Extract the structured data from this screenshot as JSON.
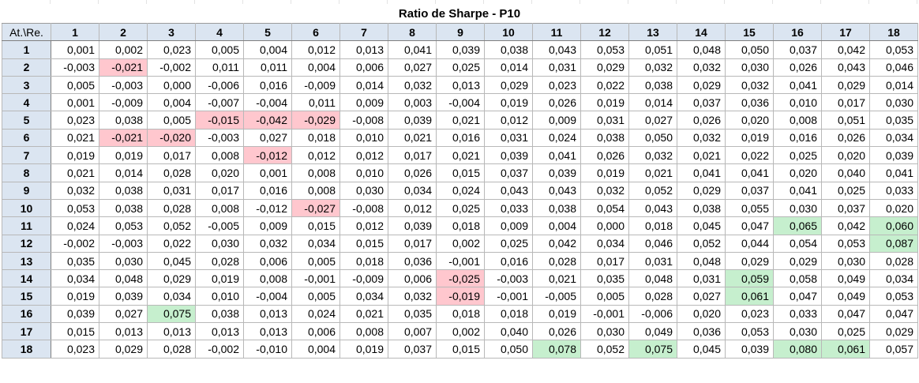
{
  "title": "Ratio de Sharpe - P10",
  "corner_label": "At.\\Re.",
  "columns": [
    "1",
    "2",
    "3",
    "4",
    "5",
    "6",
    "7",
    "8",
    "9",
    "10",
    "11",
    "12",
    "13",
    "14",
    "15",
    "16",
    "17",
    "18"
  ],
  "colors": {
    "header_bg": "#dbe5f1",
    "negative_highlight_bg": "#ffc7ce",
    "negative_highlight_text": "#9c0006",
    "positive_highlight_bg": "#c6efce",
    "positive_highlight_text": "#006100"
  },
  "rows": [
    {
      "label": "1",
      "cells": [
        {
          "v": "0,001"
        },
        {
          "v": "0,002"
        },
        {
          "v": "0,023"
        },
        {
          "v": "0,005"
        },
        {
          "v": "0,004"
        },
        {
          "v": "0,012"
        },
        {
          "v": "0,013"
        },
        {
          "v": "0,041"
        },
        {
          "v": "0,039"
        },
        {
          "v": "0,038"
        },
        {
          "v": "0,043"
        },
        {
          "v": "0,053"
        },
        {
          "v": "0,051"
        },
        {
          "v": "0,048"
        },
        {
          "v": "0,050"
        },
        {
          "v": "0,037"
        },
        {
          "v": "0,042"
        },
        {
          "v": "0,053"
        }
      ]
    },
    {
      "label": "2",
      "cells": [
        {
          "v": "-0,003"
        },
        {
          "v": "-0,021",
          "h": "neg"
        },
        {
          "v": "-0,002"
        },
        {
          "v": "0,011"
        },
        {
          "v": "0,011"
        },
        {
          "v": "0,004"
        },
        {
          "v": "0,006"
        },
        {
          "v": "0,027"
        },
        {
          "v": "0,025"
        },
        {
          "v": "0,014"
        },
        {
          "v": "0,031"
        },
        {
          "v": "0,029"
        },
        {
          "v": "0,032"
        },
        {
          "v": "0,032"
        },
        {
          "v": "0,030"
        },
        {
          "v": "0,026"
        },
        {
          "v": "0,043"
        },
        {
          "v": "0,046"
        }
      ]
    },
    {
      "label": "3",
      "cells": [
        {
          "v": "0,005"
        },
        {
          "v": "-0,003"
        },
        {
          "v": "0,000"
        },
        {
          "v": "-0,006"
        },
        {
          "v": "0,016"
        },
        {
          "v": "-0,009"
        },
        {
          "v": "0,014"
        },
        {
          "v": "0,032"
        },
        {
          "v": "0,013"
        },
        {
          "v": "0,029"
        },
        {
          "v": "0,023"
        },
        {
          "v": "0,022"
        },
        {
          "v": "0,038"
        },
        {
          "v": "0,029"
        },
        {
          "v": "0,032"
        },
        {
          "v": "0,041"
        },
        {
          "v": "0,029"
        },
        {
          "v": "0,014"
        }
      ]
    },
    {
      "label": "4",
      "cells": [
        {
          "v": "0,001"
        },
        {
          "v": "-0,009"
        },
        {
          "v": "0,004"
        },
        {
          "v": "-0,007"
        },
        {
          "v": "-0,004"
        },
        {
          "v": "0,011"
        },
        {
          "v": "0,009"
        },
        {
          "v": "0,003"
        },
        {
          "v": "-0,004"
        },
        {
          "v": "0,019"
        },
        {
          "v": "0,026"
        },
        {
          "v": "0,019"
        },
        {
          "v": "0,014"
        },
        {
          "v": "0,037"
        },
        {
          "v": "0,036"
        },
        {
          "v": "0,010"
        },
        {
          "v": "0,017"
        },
        {
          "v": "0,030"
        }
      ]
    },
    {
      "label": "5",
      "cells": [
        {
          "v": "0,023"
        },
        {
          "v": "0,038"
        },
        {
          "v": "0,005"
        },
        {
          "v": "-0,015",
          "h": "neg"
        },
        {
          "v": "-0,042",
          "h": "neg"
        },
        {
          "v": "-0,029",
          "h": "neg"
        },
        {
          "v": "-0,008"
        },
        {
          "v": "0,039"
        },
        {
          "v": "0,021"
        },
        {
          "v": "0,012"
        },
        {
          "v": "0,009"
        },
        {
          "v": "0,031"
        },
        {
          "v": "0,027"
        },
        {
          "v": "0,026"
        },
        {
          "v": "0,020"
        },
        {
          "v": "0,008"
        },
        {
          "v": "0,051"
        },
        {
          "v": "0,035"
        }
      ]
    },
    {
      "label": "6",
      "cells": [
        {
          "v": "0,021"
        },
        {
          "v": "-0,021",
          "h": "neg"
        },
        {
          "v": "-0,020",
          "h": "neg"
        },
        {
          "v": "-0,003"
        },
        {
          "v": "0,027"
        },
        {
          "v": "0,018"
        },
        {
          "v": "0,010"
        },
        {
          "v": "0,021"
        },
        {
          "v": "0,016"
        },
        {
          "v": "0,031"
        },
        {
          "v": "0,024"
        },
        {
          "v": "0,038"
        },
        {
          "v": "0,050"
        },
        {
          "v": "0,032"
        },
        {
          "v": "0,019"
        },
        {
          "v": "0,016"
        },
        {
          "v": "0,026"
        },
        {
          "v": "0,034"
        }
      ]
    },
    {
      "label": "7",
      "cells": [
        {
          "v": "0,019"
        },
        {
          "v": "0,019"
        },
        {
          "v": "0,017"
        },
        {
          "v": "0,008"
        },
        {
          "v": "-0,012",
          "h": "neg"
        },
        {
          "v": "0,012"
        },
        {
          "v": "0,012"
        },
        {
          "v": "0,017"
        },
        {
          "v": "0,021"
        },
        {
          "v": "0,039"
        },
        {
          "v": "0,041"
        },
        {
          "v": "0,026"
        },
        {
          "v": "0,032"
        },
        {
          "v": "0,021"
        },
        {
          "v": "0,022"
        },
        {
          "v": "0,025"
        },
        {
          "v": "0,020"
        },
        {
          "v": "0,039"
        }
      ]
    },
    {
      "label": "8",
      "cells": [
        {
          "v": "0,021"
        },
        {
          "v": "0,014"
        },
        {
          "v": "0,028"
        },
        {
          "v": "0,020"
        },
        {
          "v": "0,001"
        },
        {
          "v": "0,008"
        },
        {
          "v": "0,010"
        },
        {
          "v": "0,026"
        },
        {
          "v": "0,015"
        },
        {
          "v": "0,037"
        },
        {
          "v": "0,039"
        },
        {
          "v": "0,019"
        },
        {
          "v": "0,021"
        },
        {
          "v": "0,041"
        },
        {
          "v": "0,041"
        },
        {
          "v": "0,020"
        },
        {
          "v": "0,040"
        },
        {
          "v": "0,041"
        }
      ]
    },
    {
      "label": "9",
      "cells": [
        {
          "v": "0,032"
        },
        {
          "v": "0,038"
        },
        {
          "v": "0,031"
        },
        {
          "v": "0,017"
        },
        {
          "v": "0,016"
        },
        {
          "v": "0,008"
        },
        {
          "v": "0,030"
        },
        {
          "v": "0,034"
        },
        {
          "v": "0,024"
        },
        {
          "v": "0,043"
        },
        {
          "v": "0,043"
        },
        {
          "v": "0,032"
        },
        {
          "v": "0,052"
        },
        {
          "v": "0,029"
        },
        {
          "v": "0,037"
        },
        {
          "v": "0,041"
        },
        {
          "v": "0,025"
        },
        {
          "v": "0,033"
        }
      ]
    },
    {
      "label": "10",
      "cells": [
        {
          "v": "0,053"
        },
        {
          "v": "0,038"
        },
        {
          "v": "0,028"
        },
        {
          "v": "0,008"
        },
        {
          "v": "-0,012"
        },
        {
          "v": "-0,027",
          "h": "neg"
        },
        {
          "v": "-0,008"
        },
        {
          "v": "0,012"
        },
        {
          "v": "0,025"
        },
        {
          "v": "0,033"
        },
        {
          "v": "0,038"
        },
        {
          "v": "0,054"
        },
        {
          "v": "0,043"
        },
        {
          "v": "0,038"
        },
        {
          "v": "0,055"
        },
        {
          "v": "0,030"
        },
        {
          "v": "0,037"
        },
        {
          "v": "0,020"
        }
      ]
    },
    {
      "label": "11",
      "cells": [
        {
          "v": "0,024"
        },
        {
          "v": "0,053"
        },
        {
          "v": "0,052"
        },
        {
          "v": "-0,005"
        },
        {
          "v": "0,009"
        },
        {
          "v": "0,015"
        },
        {
          "v": "0,012"
        },
        {
          "v": "0,039"
        },
        {
          "v": "0,018"
        },
        {
          "v": "0,009"
        },
        {
          "v": "0,004"
        },
        {
          "v": "0,000"
        },
        {
          "v": "0,018"
        },
        {
          "v": "0,045"
        },
        {
          "v": "0,047"
        },
        {
          "v": "0,065",
          "h": "pos"
        },
        {
          "v": "0,042"
        },
        {
          "v": "0,060",
          "h": "pos"
        }
      ]
    },
    {
      "label": "12",
      "cells": [
        {
          "v": "-0,002"
        },
        {
          "v": "-0,003"
        },
        {
          "v": "0,022"
        },
        {
          "v": "0,030"
        },
        {
          "v": "0,032"
        },
        {
          "v": "0,034",
          "b": true
        },
        {
          "v": "0,015"
        },
        {
          "v": "0,017"
        },
        {
          "v": "0,002"
        },
        {
          "v": "0,025"
        },
        {
          "v": "0,042"
        },
        {
          "v": "0,034"
        },
        {
          "v": "0,046"
        },
        {
          "v": "0,052"
        },
        {
          "v": "0,044"
        },
        {
          "v": "0,054"
        },
        {
          "v": "0,053"
        },
        {
          "v": "0,087",
          "h": "pos"
        }
      ]
    },
    {
      "label": "13",
      "cells": [
        {
          "v": "0,035"
        },
        {
          "v": "0,030"
        },
        {
          "v": "0,045"
        },
        {
          "v": "0,028"
        },
        {
          "v": "0,006"
        },
        {
          "v": "0,005"
        },
        {
          "v": "0,018"
        },
        {
          "v": "0,036"
        },
        {
          "v": "-0,001"
        },
        {
          "v": "0,016"
        },
        {
          "v": "0,028"
        },
        {
          "v": "0,017"
        },
        {
          "v": "0,031"
        },
        {
          "v": "0,048"
        },
        {
          "v": "0,029"
        },
        {
          "v": "0,029"
        },
        {
          "v": "0,030"
        },
        {
          "v": "0,028"
        }
      ]
    },
    {
      "label": "14",
      "cells": [
        {
          "v": "0,034"
        },
        {
          "v": "0,048"
        },
        {
          "v": "0,029"
        },
        {
          "v": "0,019"
        },
        {
          "v": "0,008"
        },
        {
          "v": "-0,001"
        },
        {
          "v": "-0,009"
        },
        {
          "v": "0,006"
        },
        {
          "v": "-0,025",
          "h": "neg"
        },
        {
          "v": "-0,003"
        },
        {
          "v": "0,021"
        },
        {
          "v": "0,035"
        },
        {
          "v": "0,048"
        },
        {
          "v": "0,031"
        },
        {
          "v": "0,059",
          "h": "pos"
        },
        {
          "v": "0,058"
        },
        {
          "v": "0,049"
        },
        {
          "v": "0,034"
        }
      ]
    },
    {
      "label": "15",
      "cells": [
        {
          "v": "0,019"
        },
        {
          "v": "0,039"
        },
        {
          "v": "0,034"
        },
        {
          "v": "0,010"
        },
        {
          "v": "-0,004"
        },
        {
          "v": "0,005"
        },
        {
          "v": "0,034"
        },
        {
          "v": "0,032"
        },
        {
          "v": "-0,019",
          "h": "neg"
        },
        {
          "v": "-0,001"
        },
        {
          "v": "-0,005"
        },
        {
          "v": "0,005"
        },
        {
          "v": "0,028"
        },
        {
          "v": "0,027"
        },
        {
          "v": "0,061",
          "h": "pos"
        },
        {
          "v": "0,047"
        },
        {
          "v": "0,049"
        },
        {
          "v": "0,053"
        }
      ]
    },
    {
      "label": "16",
      "cells": [
        {
          "v": "0,039"
        },
        {
          "v": "0,027"
        },
        {
          "v": "0,075",
          "h": "pos"
        },
        {
          "v": "0,038"
        },
        {
          "v": "0,013"
        },
        {
          "v": "0,024"
        },
        {
          "v": "0,021"
        },
        {
          "v": "0,035"
        },
        {
          "v": "0,018"
        },
        {
          "v": "0,018"
        },
        {
          "v": "0,019"
        },
        {
          "v": "-0,001"
        },
        {
          "v": "-0,006"
        },
        {
          "v": "0,020"
        },
        {
          "v": "0,023"
        },
        {
          "v": "0,033"
        },
        {
          "v": "0,047"
        },
        {
          "v": "0,047"
        }
      ]
    },
    {
      "label": "17",
      "cells": [
        {
          "v": "0,015"
        },
        {
          "v": "0,013"
        },
        {
          "v": "0,013"
        },
        {
          "v": "0,013"
        },
        {
          "v": "0,013"
        },
        {
          "v": "0,006"
        },
        {
          "v": "0,008"
        },
        {
          "v": "0,007"
        },
        {
          "v": "0,002"
        },
        {
          "v": "0,040"
        },
        {
          "v": "0,026"
        },
        {
          "v": "0,030"
        },
        {
          "v": "0,049"
        },
        {
          "v": "0,036"
        },
        {
          "v": "0,053"
        },
        {
          "v": "0,030"
        },
        {
          "v": "0,025"
        },
        {
          "v": "0,029"
        }
      ]
    },
    {
      "label": "18",
      "cells": [
        {
          "v": "0,023"
        },
        {
          "v": "0,029"
        },
        {
          "v": "0,028"
        },
        {
          "v": "-0,002"
        },
        {
          "v": "-0,010"
        },
        {
          "v": "0,004"
        },
        {
          "v": "0,019"
        },
        {
          "v": "0,037"
        },
        {
          "v": "0,015"
        },
        {
          "v": "0,050"
        },
        {
          "v": "0,078",
          "h": "pos"
        },
        {
          "v": "0,052"
        },
        {
          "v": "0,075",
          "h": "pos"
        },
        {
          "v": "0,045"
        },
        {
          "v": "0,039"
        },
        {
          "v": "0,080",
          "h": "pos"
        },
        {
          "v": "0,061",
          "h": "pos"
        },
        {
          "v": "0,057"
        }
      ]
    }
  ]
}
